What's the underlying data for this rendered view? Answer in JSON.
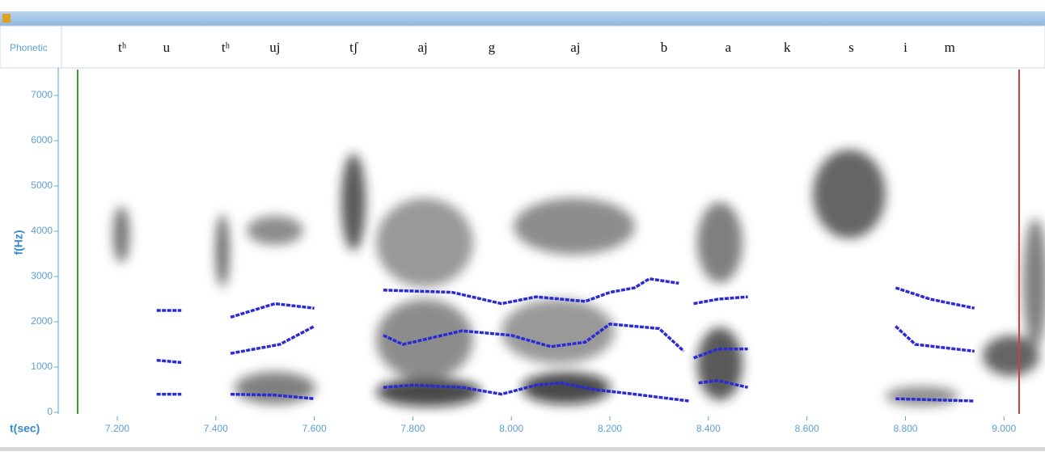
{
  "phonetic_label": "Phonetic",
  "chart_data": {
    "type": "line",
    "ylabel": "f(Hz)",
    "xlabel": "t(sec)",
    "xlim": [
      7.09,
      9.08
    ],
    "ylim": [
      0,
      7500
    ],
    "yticks": [
      0,
      1000,
      2000,
      3000,
      4000,
      5000,
      6000,
      7000
    ],
    "xticks": [
      {
        "value": 7.2,
        "label": "7.200"
      },
      {
        "value": 7.4,
        "label": "7.400"
      },
      {
        "value": 7.6,
        "label": "7.600"
      },
      {
        "value": 7.8,
        "label": "7.800"
      },
      {
        "value": 8.0,
        "label": "8.000"
      },
      {
        "value": 8.2,
        "label": "8.200"
      },
      {
        "value": 8.4,
        "label": "8.400"
      },
      {
        "value": 8.6,
        "label": "8.600"
      },
      {
        "value": 8.8,
        "label": "8.800"
      },
      {
        "value": 9.0,
        "label": "9.000"
      }
    ],
    "segments": [
      {
        "label": "tʰ",
        "t": 7.21
      },
      {
        "label": "u",
        "t": 7.3
      },
      {
        "label": "tʰ",
        "t": 7.42
      },
      {
        "label": "uj",
        "t": 7.52
      },
      {
        "label": "tʃ",
        "t": 7.68
      },
      {
        "label": "aj",
        "t": 7.82
      },
      {
        "label": "g",
        "t": 7.96
      },
      {
        "label": "aj",
        "t": 8.13
      },
      {
        "label": "b",
        "t": 8.31
      },
      {
        "label": "a",
        "t": 8.44
      },
      {
        "label": "k",
        "t": 8.56
      },
      {
        "label": "s",
        "t": 8.69
      },
      {
        "label": "i",
        "t": 8.8
      },
      {
        "label": "m",
        "t": 8.89
      }
    ],
    "series": [
      {
        "color": "#2b2bd6",
        "x": [
          7.28,
          7.33,
          null,
          7.43,
          7.52,
          7.6,
          null,
          7.74,
          7.8,
          7.9,
          7.98,
          8.05,
          8.1,
          8.17,
          8.25,
          8.36,
          null,
          8.38,
          8.42,
          8.48,
          null,
          8.78,
          8.94
        ],
        "values": [
          400,
          400,
          null,
          400,
          380,
          300,
          null,
          550,
          600,
          550,
          400,
          600,
          650,
          500,
          400,
          250,
          null,
          650,
          700,
          550,
          null,
          300,
          250
        ]
      },
      {
        "color": "#2b2bd6",
        "x": [
          7.28,
          7.33,
          null,
          7.43,
          7.53,
          7.6,
          null,
          7.74,
          7.78,
          7.9,
          8.0,
          8.08,
          8.15,
          8.2,
          8.3,
          8.35,
          null,
          8.37,
          8.42,
          8.48,
          null,
          8.78,
          8.82,
          8.9,
          8.94
        ],
        "values": [
          1150,
          1100,
          null,
          1300,
          1500,
          1900,
          null,
          1700,
          1500,
          1800,
          1700,
          1450,
          1550,
          1950,
          1850,
          1350,
          null,
          1200,
          1400,
          1400,
          null,
          1900,
          1500,
          1400,
          1350
        ]
      },
      {
        "color": "#2b2bd6",
        "x": [
          7.28,
          7.33,
          null,
          7.43,
          7.52,
          7.6,
          null,
          7.74,
          7.88,
          7.98,
          8.05,
          8.15,
          8.2,
          8.25,
          8.28,
          8.34,
          null,
          8.37,
          8.42,
          8.48,
          null,
          8.78,
          8.85,
          8.94
        ],
        "values": [
          2250,
          2250,
          null,
          2100,
          2400,
          2300,
          null,
          2700,
          2650,
          2400,
          2550,
          2450,
          2650,
          2750,
          2950,
          2850,
          null,
          2400,
          2500,
          2550,
          null,
          2750,
          2500,
          2300
        ]
      }
    ]
  }
}
